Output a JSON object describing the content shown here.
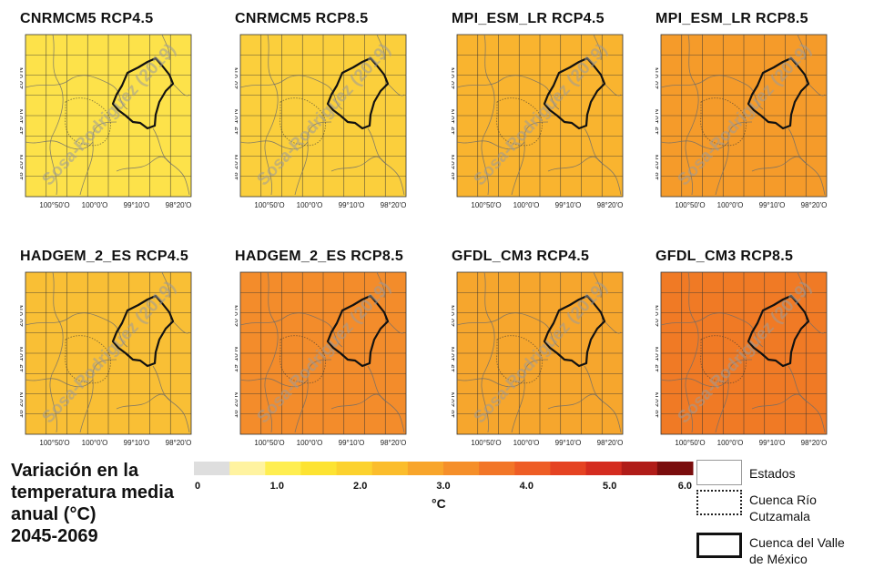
{
  "panels": [
    {
      "title": "CNRMCM5 RCP4.5",
      "fill": "#fde24a"
    },
    {
      "title": "CNRMCM5 RCP8.5",
      "fill": "#fbcf3c"
    },
    {
      "title": "MPI_ESM_LR RCP4.5",
      "fill": "#f9b42f"
    },
    {
      "title": "MPI_ESM_LR RCP8.5",
      "fill": "#f59b2a"
    },
    {
      "title": "HADGEM_2_ES RCP4.5",
      "fill": "#f9bf35"
    },
    {
      "title": "HADGEM_2_ES RCP8.5",
      "fill": "#f38c2b"
    },
    {
      "title": "GFDL_CM3 RCP4.5",
      "fill": "#f6a62d"
    },
    {
      "title": "GFDL_CM3 RCP8.5",
      "fill": "#f07a25"
    }
  ],
  "axes": {
    "y_ticks": [
      "20°0'N",
      "19°10'N",
      "18°20'N"
    ],
    "x_ticks": [
      "100°50'O",
      "100°0'O",
      "99°10'O",
      "98°20'O"
    ]
  },
  "watermark": "Sosa-Rodriguez (2019)",
  "caption": {
    "line1": "Variación en la",
    "line2": "temperatura media",
    "line3": "anual (°C)",
    "line4": "2045-2069"
  },
  "colorbar": {
    "ticks": [
      "0",
      "1.0",
      "2.0",
      "3.0",
      "4.0",
      "5.0",
      "6.0"
    ],
    "min": 0,
    "max": 6,
    "unit": "°C",
    "colors": [
      "#dedede",
      "#fff3a0",
      "#ffee50",
      "#fde332",
      "#fcd22e",
      "#fbbd2c",
      "#f8a52b",
      "#f58f2a",
      "#f27628",
      "#ee5d25",
      "#e54322",
      "#d42c1f",
      "#b01c18",
      "#7a0d0d"
    ]
  },
  "legend": {
    "estados": "Estados",
    "cutzamala_line1": "Cuenca Río",
    "cutzamala_line2": "Cutzamala",
    "valle_line1": "Cuenca del Valle",
    "valle_line2": "de México"
  },
  "colors": {
    "basin_outline": "#111111",
    "grid": "#333333",
    "state_lines": "#6b6b6b"
  }
}
